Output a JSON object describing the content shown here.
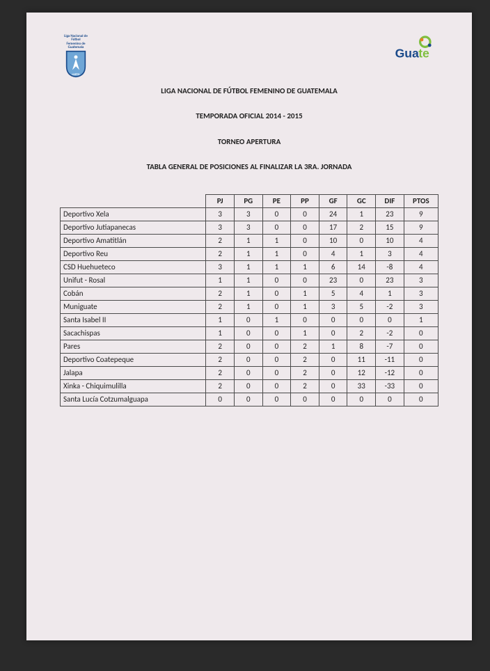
{
  "logos": {
    "left_caption": "Liga Nacional de Fútbol\nFemenino de Guatemala",
    "left_acronym": "LNFFG",
    "left_shield_fill": "#6fa6d6",
    "left_shield_stroke": "#1a4a8a",
    "left_figure": "#ffffff",
    "right_word_blue": "Gua",
    "right_word_green": "te",
    "right_blue": "#1a4a8a",
    "right_green": "#7fbf3f",
    "right_accent": "#e67e22"
  },
  "titles": {
    "t1": "LIGA NACIONAL DE FÚTBOL FEMENINO DE GUATEMALA",
    "t2": "TEMPORADA OFICIAL 2014 - 2015",
    "t3": "TORNEO APERTURA",
    "t4": "TABLA GENERAL DE POSICIONES AL FINALIZAR LA 3RA. JORNADA"
  },
  "table": {
    "columns": [
      "PJ",
      "PG",
      "PE",
      "PP",
      "GF",
      "GC",
      "DIF",
      "PTOS"
    ],
    "rows": [
      {
        "team": "Deportivo Xela",
        "v": [
          3,
          3,
          0,
          0,
          24,
          1,
          23,
          9
        ]
      },
      {
        "team": "Deportivo Jutiapanecas",
        "v": [
          3,
          3,
          0,
          0,
          17,
          2,
          15,
          9
        ]
      },
      {
        "team": "Deportivo Amatitlán",
        "v": [
          2,
          1,
          1,
          0,
          10,
          0,
          10,
          4
        ]
      },
      {
        "team": "Deportivo Reu",
        "v": [
          2,
          1,
          1,
          0,
          4,
          1,
          3,
          4
        ]
      },
      {
        "team": "CSD Huehueteco",
        "v": [
          3,
          1,
          1,
          1,
          6,
          14,
          -8,
          4
        ]
      },
      {
        "team": "Unifut - Rosal",
        "v": [
          1,
          1,
          0,
          0,
          23,
          0,
          23,
          3
        ]
      },
      {
        "team": "Cobán",
        "v": [
          2,
          1,
          0,
          1,
          5,
          4,
          1,
          3
        ]
      },
      {
        "team": "Muniguate",
        "v": [
          2,
          1,
          0,
          1,
          3,
          5,
          -2,
          3
        ]
      },
      {
        "team": "Santa Isabel II",
        "v": [
          1,
          0,
          1,
          0,
          0,
          0,
          0,
          1
        ]
      },
      {
        "team": "Sacachispas",
        "v": [
          1,
          0,
          0,
          1,
          0,
          2,
          -2,
          0
        ]
      },
      {
        "team": "Pares",
        "v": [
          2,
          0,
          0,
          2,
          1,
          8,
          -7,
          0
        ]
      },
      {
        "team": "Deportivo Coatepeque",
        "v": [
          2,
          0,
          0,
          2,
          0,
          11,
          -11,
          0
        ]
      },
      {
        "team": "Jalapa",
        "v": [
          2,
          0,
          0,
          2,
          0,
          12,
          -12,
          0
        ]
      },
      {
        "team": "Xinka - Chiquimulilla",
        "v": [
          2,
          0,
          0,
          2,
          0,
          33,
          -33,
          0
        ]
      },
      {
        "team": "Santa Lucía Cotzumalguapa",
        "v": [
          0,
          0,
          0,
          0,
          0,
          0,
          0,
          0
        ]
      }
    ]
  },
  "style": {
    "page_bg": "#efe9ec",
    "page_text": "#222222",
    "border_color": "#4a4a4a",
    "title_fontsize": 11,
    "cell_fontsize": 11
  }
}
